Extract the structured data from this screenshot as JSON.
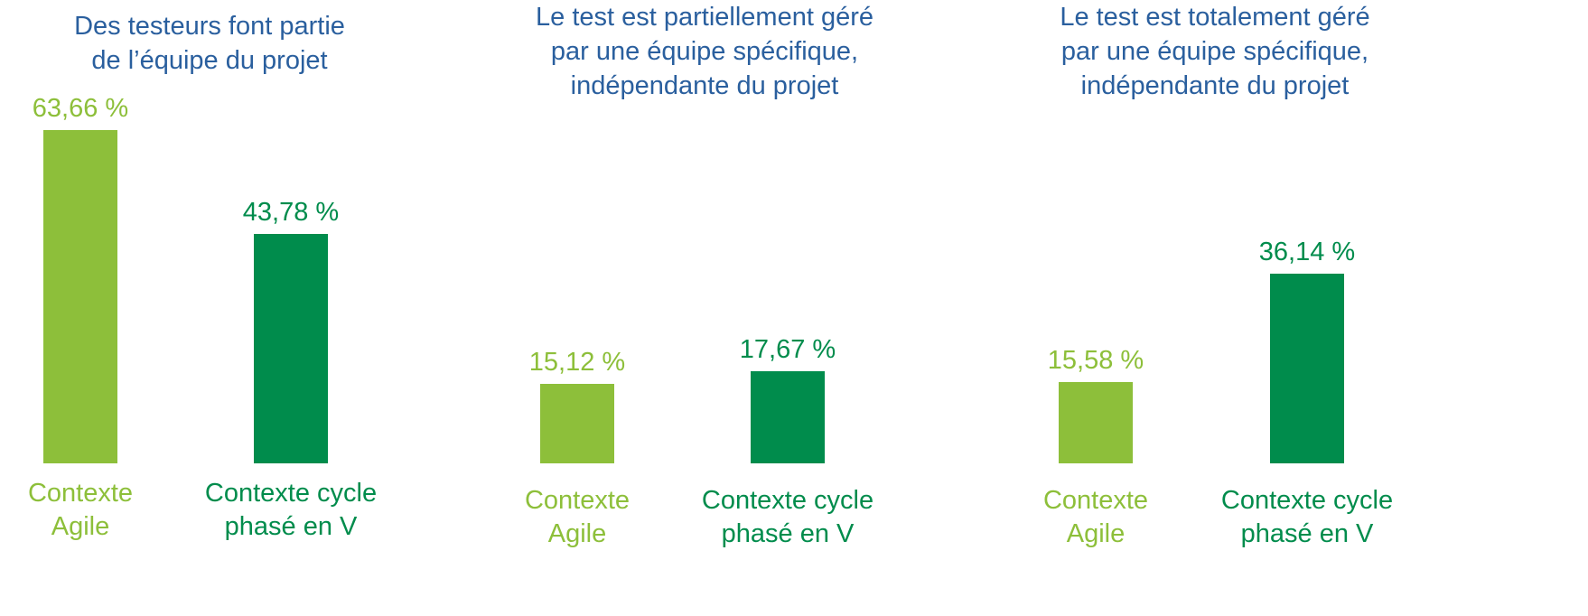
{
  "chart_data": [
    {
      "type": "bar",
      "title": "Des testeurs font partie\nde l’équipe du projet",
      "categories": [
        "Contexte\nAgile",
        "Contexte cycle\nphasé en V"
      ],
      "values": [
        63.66,
        43.78
      ],
      "value_labels": [
        "63,66 %",
        "43,78 %"
      ],
      "colors": [
        "#8dbf3a",
        "#008c4c"
      ]
    },
    {
      "type": "bar",
      "title": "Le test est partiellement géré\npar une équipe spécifique,\nindépendante du projet",
      "categories": [
        "Contexte\nAgile",
        "Contexte cycle\nphasé en V"
      ],
      "values": [
        15.12,
        17.67
      ],
      "value_labels": [
        "15,12 %",
        "17,67 %"
      ],
      "colors": [
        "#8dbf3a",
        "#008c4c"
      ]
    },
    {
      "type": "bar",
      "title": "Le test est totalement géré\npar une équipe spécifique,\nindépendante du projet",
      "categories": [
        "Contexte\nAgile",
        "Contexte cycle\nphasé en V"
      ],
      "values": [
        15.58,
        36.14
      ],
      "value_labels": [
        "15,58 %",
        "36,14 %"
      ],
      "colors": [
        "#8dbf3a",
        "#008c4c"
      ]
    }
  ]
}
